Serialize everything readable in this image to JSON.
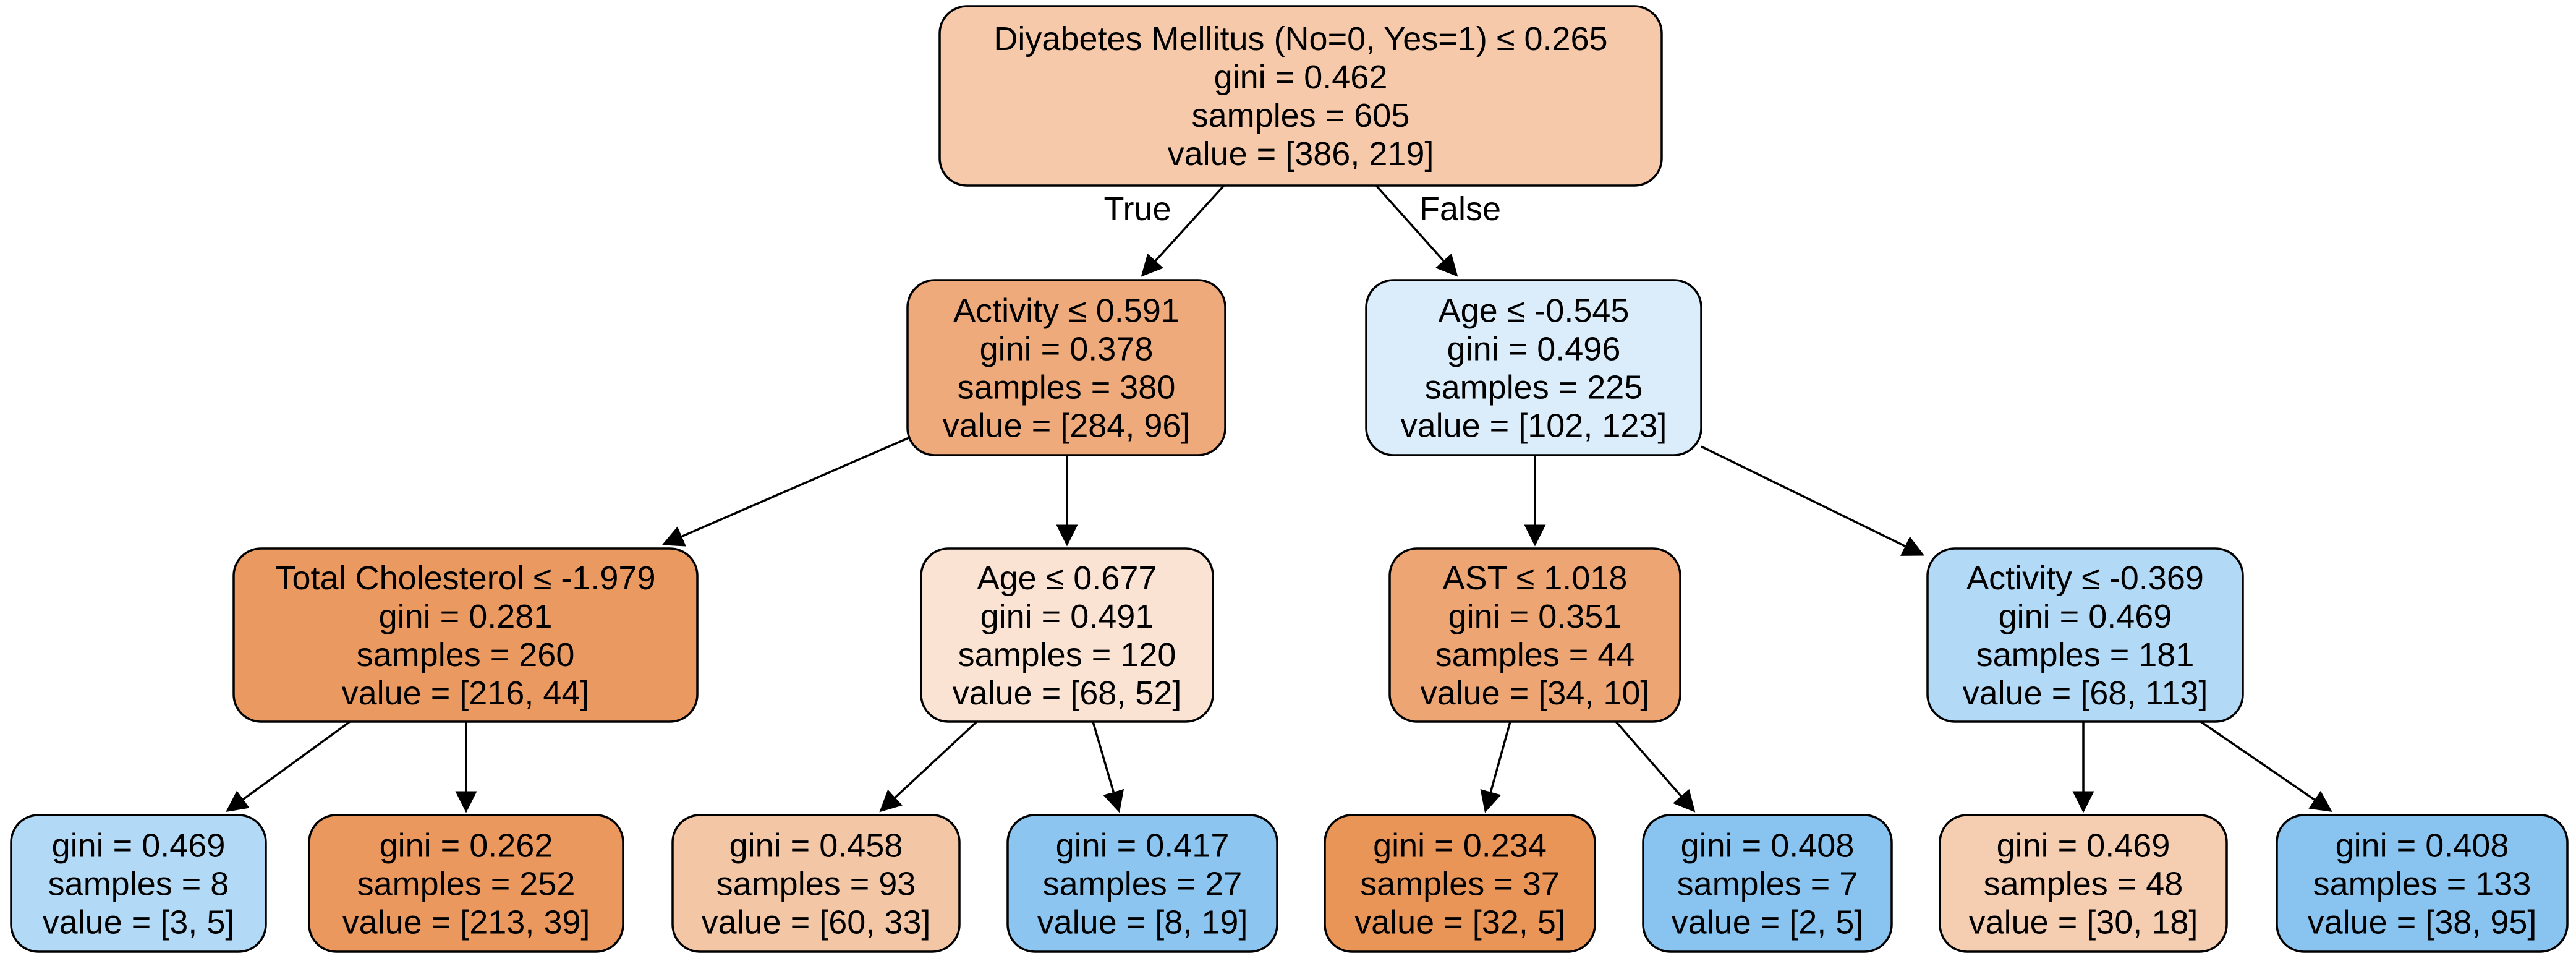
{
  "edge_labels": {
    "true_label": "True",
    "false_label": "False"
  },
  "colors": {
    "stroke": "#000000",
    "class0_strong": "#e99355",
    "class0_medium": "#eeaa7a",
    "class0_light": "#f5c9a9",
    "class0_pale": "#fae3d3",
    "class1_pale": "#dbedfa",
    "class1_light": "#b2d9f5",
    "class1_strong": "#8bc5f0"
  },
  "nodes": [
    {
      "id": "root",
      "lines": [
        "Diyabetes Mellitus (No=0, Yes=1) ≤ 0.265",
        "gini = 0.462",
        "samples = 605",
        "value = [386, 219]"
      ],
      "fill": "#f5c9a9"
    },
    {
      "id": "l",
      "lines": [
        "Activity ≤ 0.591",
        "gini = 0.378",
        "samples = 380",
        "value = [284, 96]"
      ],
      "fill": "#eeaa7a"
    },
    {
      "id": "r",
      "lines": [
        "Age ≤ -0.545",
        "gini = 0.496",
        "samples = 225",
        "value = [102, 123]"
      ],
      "fill": "#dbedfa"
    },
    {
      "id": "ll",
      "lines": [
        "Total Cholesterol ≤ -1.979",
        "gini = 0.281",
        "samples = 260",
        "value = [216, 44]"
      ],
      "fill": "#ea9a60"
    },
    {
      "id": "lr",
      "lines": [
        "Age ≤ 0.677",
        "gini = 0.491",
        "samples = 120",
        "value = [68, 52]"
      ],
      "fill": "#fae3d3"
    },
    {
      "id": "rl",
      "lines": [
        "AST ≤ 1.018",
        "gini = 0.351",
        "samples = 44",
        "value = [34, 10]"
      ],
      "fill": "#eda673"
    },
    {
      "id": "rr",
      "lines": [
        "Activity ≤ -0.369",
        "gini = 0.469",
        "samples = 181",
        "value = [68, 113]"
      ],
      "fill": "#b2d9f5"
    },
    {
      "id": "lll",
      "lines": [
        "gini = 0.469",
        "samples = 8",
        "value = [3, 5]"
      ],
      "fill": "#b2d9f5"
    },
    {
      "id": "llr",
      "lines": [
        "gini = 0.262",
        "samples = 252",
        "value = [213, 39]"
      ],
      "fill": "#ea985d"
    },
    {
      "id": "lrl",
      "lines": [
        "gini = 0.458",
        "samples = 93",
        "value = [60, 33]"
      ],
      "fill": "#f3c6a6"
    },
    {
      "id": "lrr",
      "lines": [
        "gini = 0.417",
        "samples = 27",
        "value = [8, 19]"
      ],
      "fill": "#8cc6f0"
    },
    {
      "id": "rll",
      "lines": [
        "gini = 0.234",
        "samples = 37",
        "value = [32, 5]"
      ],
      "fill": "#e99558"
    },
    {
      "id": "rlr",
      "lines": [
        "gini = 0.408",
        "samples = 7",
        "value = [2, 5]"
      ],
      "fill": "#88c4ef"
    },
    {
      "id": "rrl",
      "lines": [
        "gini = 0.469",
        "samples = 48",
        "value = [30, 18]"
      ],
      "fill": "#f5cdb0"
    },
    {
      "id": "rrr",
      "lines": [
        "gini = 0.408",
        "samples = 133",
        "value = [38, 95]"
      ],
      "fill": "#88c4ef"
    }
  ],
  "edges": [
    {
      "from": "root",
      "to": "l",
      "label": "true_label"
    },
    {
      "from": "root",
      "to": "r",
      "label": "false_label"
    },
    {
      "from": "l",
      "to": "ll"
    },
    {
      "from": "l",
      "to": "lr"
    },
    {
      "from": "r",
      "to": "rl"
    },
    {
      "from": "r",
      "to": "rr"
    },
    {
      "from": "ll",
      "to": "lll"
    },
    {
      "from": "ll",
      "to": "llr"
    },
    {
      "from": "lr",
      "to": "lrl"
    },
    {
      "from": "lr",
      "to": "lrr"
    },
    {
      "from": "rl",
      "to": "rll"
    },
    {
      "from": "rl",
      "to": "rlr"
    },
    {
      "from": "rr",
      "to": "rrl"
    },
    {
      "from": "rr",
      "to": "rrr"
    }
  ]
}
